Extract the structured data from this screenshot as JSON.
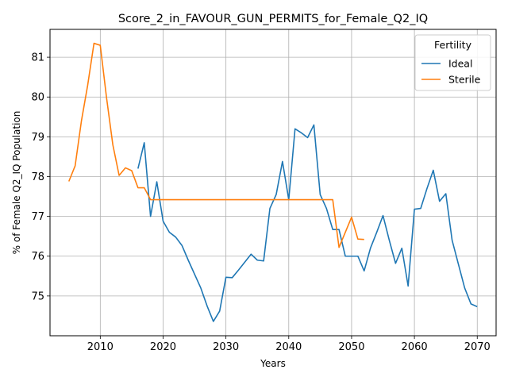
{
  "chart_data": {
    "type": "line",
    "title": "Score_2_in_FAVOUR_GUN_PERMITS_for_Female_Q2_IQ",
    "xlabel": "Years",
    "ylabel": "% of Female Q2_IQ Population",
    "xlim": [
      2002,
      2073
    ],
    "ylim": [
      74.0,
      81.7
    ],
    "xticks": [
      2010,
      2020,
      2030,
      2040,
      2050,
      2060,
      2070
    ],
    "yticks": [
      75,
      76,
      77,
      78,
      79,
      80,
      81
    ],
    "grid": true,
    "legend": {
      "title": "Fertility",
      "placement": "top-right"
    },
    "series": [
      {
        "name": "Ideal",
        "color": "#1f77b4",
        "points": [
          [
            2016,
            78.2
          ],
          [
            2017,
            78.85
          ],
          [
            2018,
            77.0
          ],
          [
            2019,
            77.87
          ],
          [
            2020,
            76.88
          ],
          [
            2021,
            76.6
          ],
          [
            2022,
            76.48
          ],
          [
            2023,
            76.27
          ],
          [
            2024,
            75.9
          ],
          [
            2025,
            75.55
          ],
          [
            2026,
            75.2
          ],
          [
            2027,
            74.75
          ],
          [
            2028,
            74.36
          ],
          [
            2029,
            74.62
          ],
          [
            2030,
            75.47
          ],
          [
            2031,
            75.46
          ],
          [
            2032,
            75.65
          ],
          [
            2033,
            75.85
          ],
          [
            2034,
            76.05
          ],
          [
            2035,
            75.9
          ],
          [
            2036,
            75.88
          ],
          [
            2037,
            77.2
          ],
          [
            2038,
            77.55
          ],
          [
            2039,
            78.38
          ],
          [
            2040,
            77.42
          ],
          [
            2041,
            79.2
          ],
          [
            2042,
            79.1
          ],
          [
            2043,
            78.98
          ],
          [
            2044,
            79.3
          ],
          [
            2045,
            77.55
          ],
          [
            2046,
            77.2
          ],
          [
            2047,
            76.67
          ],
          [
            2048,
            76.67
          ],
          [
            2049,
            76.0
          ],
          [
            2050,
            76.0
          ],
          [
            2051,
            76.0
          ],
          [
            2052,
            75.63
          ],
          [
            2053,
            76.2
          ],
          [
            2054,
            76.6
          ],
          [
            2055,
            77.02
          ],
          [
            2056,
            76.4
          ],
          [
            2057,
            75.82
          ],
          [
            2058,
            76.2
          ],
          [
            2059,
            75.25
          ],
          [
            2060,
            77.18
          ],
          [
            2061,
            77.2
          ],
          [
            2062,
            77.7
          ],
          [
            2063,
            78.16
          ],
          [
            2064,
            77.38
          ],
          [
            2065,
            77.57
          ],
          [
            2066,
            76.4
          ],
          [
            2067,
            75.8
          ],
          [
            2068,
            75.2
          ],
          [
            2069,
            74.8
          ],
          [
            2070,
            74.73
          ]
        ]
      },
      {
        "name": "Sterile",
        "color": "#ff7f0e",
        "points": [
          [
            2005,
            77.88
          ],
          [
            2006,
            78.27
          ],
          [
            2007,
            79.4
          ],
          [
            2008,
            80.3
          ],
          [
            2009,
            81.35
          ],
          [
            2010,
            81.3
          ],
          [
            2011,
            79.98
          ],
          [
            2012,
            78.8
          ],
          [
            2013,
            78.03
          ],
          [
            2014,
            78.22
          ],
          [
            2015,
            78.15
          ],
          [
            2016,
            77.72
          ],
          [
            2017,
            77.72
          ],
          [
            2018,
            77.42
          ],
          [
            2019,
            77.42
          ],
          [
            2020,
            77.42
          ],
          [
            2025,
            77.42
          ],
          [
            2030,
            77.42
          ],
          [
            2035,
            77.42
          ],
          [
            2040,
            77.42
          ],
          [
            2045,
            77.42
          ],
          [
            2046,
            77.42
          ],
          [
            2047,
            77.42
          ],
          [
            2048,
            76.22
          ],
          [
            2049,
            76.6
          ],
          [
            2050,
            76.98
          ],
          [
            2051,
            76.43
          ],
          [
            2052,
            76.42
          ]
        ]
      }
    ]
  }
}
